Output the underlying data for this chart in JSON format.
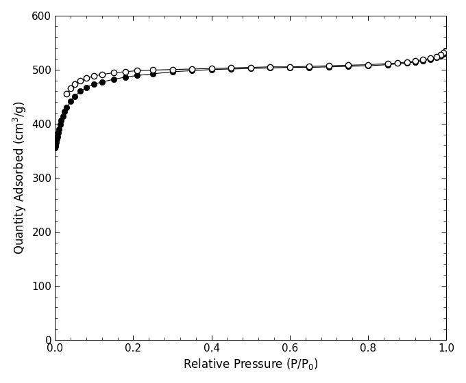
{
  "adsorption_x": [
    0.0001,
    0.0003,
    0.0005,
    0.001,
    0.0015,
    0.002,
    0.003,
    0.004,
    0.005,
    0.006,
    0.008,
    0.01,
    0.013,
    0.016,
    0.02,
    0.025,
    0.03,
    0.04,
    0.05,
    0.065,
    0.08,
    0.1,
    0.12,
    0.15,
    0.18,
    0.21,
    0.25,
    0.3,
    0.35,
    0.4,
    0.45,
    0.5,
    0.55,
    0.6,
    0.65,
    0.7,
    0.75,
    0.8,
    0.85,
    0.9,
    0.92,
    0.94,
    0.96,
    0.975,
    0.985,
    0.993,
    0.997
  ],
  "adsorption_y": [
    355,
    356,
    357,
    358,
    360,
    362,
    365,
    368,
    372,
    376,
    383,
    390,
    398,
    406,
    414,
    423,
    430,
    441,
    450,
    460,
    467,
    473,
    477,
    482,
    486,
    489,
    492,
    496,
    498,
    500,
    501,
    502,
    503,
    504,
    504,
    505,
    506,
    507,
    509,
    512,
    514,
    516,
    519,
    522,
    525,
    529,
    534
  ],
  "desorption_x": [
    0.997,
    0.993,
    0.985,
    0.975,
    0.96,
    0.94,
    0.92,
    0.9,
    0.875,
    0.85,
    0.8,
    0.75,
    0.7,
    0.65,
    0.6,
    0.55,
    0.5,
    0.45,
    0.4,
    0.35,
    0.3,
    0.25,
    0.21,
    0.18,
    0.15,
    0.12,
    0.1,
    0.08,
    0.065,
    0.05,
    0.04,
    0.03
  ],
  "desorption_y": [
    534,
    531,
    528,
    524,
    521,
    518,
    516,
    514,
    512,
    511,
    509,
    508,
    507,
    506,
    505,
    505,
    504,
    503,
    502,
    501,
    500,
    499,
    498,
    496,
    494,
    491,
    488,
    484,
    479,
    473,
    465,
    455
  ],
  "xlabel": "Relative Pressure (P/P$_0$)",
  "ylabel": "Quantity Adsorbed (cm$^3$/g)",
  "xlim": [
    0.0,
    1.0
  ],
  "ylim": [
    0,
    600
  ],
  "yticks": [
    0,
    100,
    200,
    300,
    400,
    500,
    600
  ],
  "xticks": [
    0.0,
    0.2,
    0.4,
    0.6,
    0.8,
    1.0
  ],
  "line_color": "#000000",
  "marker_size": 6,
  "linewidth": 0.8,
  "background_color": "#ffffff"
}
